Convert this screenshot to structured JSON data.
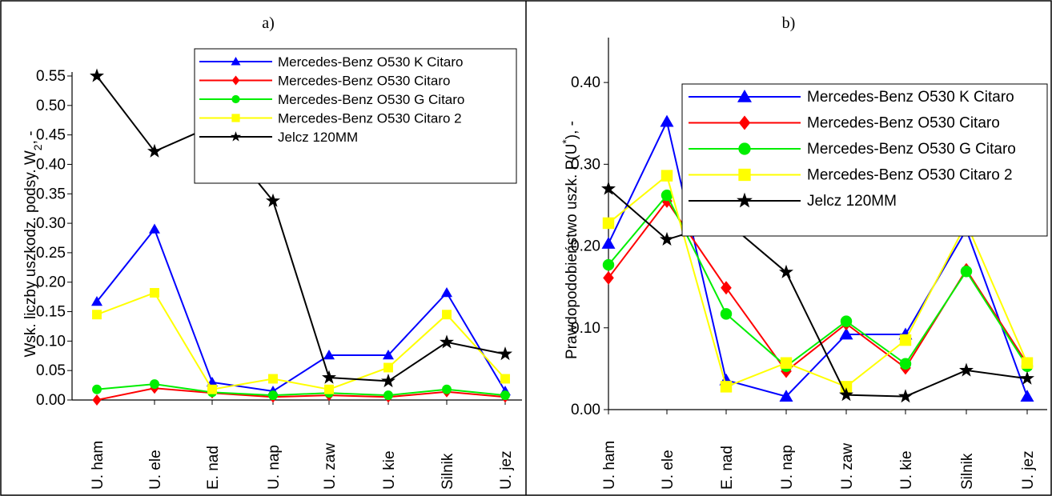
{
  "panels": [
    {
      "label": "a)",
      "chart_data": {
        "type": "line",
        "categories": [
          "U. ham",
          "U. ele",
          "E. nad",
          "U. nap",
          "U. zaw",
          "U. kie",
          "Silnik",
          "U. jez"
        ],
        "ylabel_main": "Wsk. liczby uszkodz. podsy. W",
        "ylabel_sub": "2",
        "ylabel_tail": ", -",
        "ylim": [
          0,
          0.55
        ],
        "yticks": [
          "0.00",
          "0.05",
          "0.10",
          "0.15",
          "0.20",
          "0.25",
          "0.30",
          "0.35",
          "0.40",
          "0.45",
          "0.50",
          "0.55"
        ],
        "grid": false,
        "legend_position": "top-right",
        "series": [
          {
            "name": "Mercedes-Benz O530 K Citaro",
            "color": "#0000ff",
            "marker": "triangle",
            "values": [
              0.167,
              0.29,
              0.03,
              0.015,
              0.076,
              0.076,
              0.182,
              0.015
            ]
          },
          {
            "name": "Mercedes-Benz O530 Citaro",
            "color": "#ff0000",
            "marker": "diamond",
            "values": [
              0.0,
              0.02,
              0.012,
              0.005,
              0.008,
              0.005,
              0.014,
              0.005
            ]
          },
          {
            "name": "Mercedes-Benz O530 G Citaro",
            "color": "#00ee00",
            "marker": "circle",
            "values": [
              0.018,
              0.027,
              0.013,
              0.008,
              0.012,
              0.008,
              0.018,
              0.008
            ]
          },
          {
            "name": "Mercedes-Benz O530 Citaro 2",
            "color": "#ffff00",
            "marker": "square",
            "values": [
              0.145,
              0.182,
              0.018,
              0.036,
              0.018,
              0.055,
              0.145,
              0.036
            ]
          },
          {
            "name": "Jelcz 120MM",
            "color": "#000000",
            "marker": "star",
            "values": [
              0.55,
              0.422,
              0.465,
              0.338,
              0.038,
              0.032,
              0.098,
              0.078
            ]
          }
        ]
      }
    },
    {
      "label": "b)",
      "chart_data": {
        "type": "line",
        "categories": [
          "U. ham",
          "U. ele",
          "E. nad",
          "U. nap",
          "U. zaw",
          "U. kie",
          "Silnik",
          "U. jez"
        ],
        "ylabel_main": "Prawdopodobieństwo uszk. P(U",
        "ylabel_sup": "*",
        "ylabel_tail": "), -",
        "ylim": [
          0,
          0.45
        ],
        "yticks": [
          "0.00",
          "0.10",
          "0.20",
          "0.30",
          "0.40"
        ],
        "grid": false,
        "legend_position": "top-right",
        "series": [
          {
            "name": "Mercedes-Benz O530 K Citaro",
            "color": "#0000ff",
            "marker": "triangle",
            "values": [
              0.203,
              0.352,
              0.036,
              0.016,
              0.092,
              0.092,
              0.22,
              0.016
            ]
          },
          {
            "name": "Mercedes-Benz O530 Citaro",
            "color": "#ff0000",
            "marker": "diamond",
            "values": [
              0.161,
              0.255,
              0.149,
              0.047,
              0.105,
              0.051,
              0.171,
              0.056
            ]
          },
          {
            "name": "Mercedes-Benz O530 G Citaro",
            "color": "#00ee00",
            "marker": "circle",
            "values": [
              0.177,
              0.262,
              0.117,
              0.053,
              0.108,
              0.056,
              0.169,
              0.053
            ]
          },
          {
            "name": "Mercedes-Benz O530 Citaro 2",
            "color": "#ffff00",
            "marker": "square",
            "values": [
              0.228,
              0.286,
              0.028,
              0.057,
              0.028,
              0.085,
              0.228,
              0.057
            ]
          },
          {
            "name": "Jelcz 120MM",
            "color": "#000000",
            "marker": "star",
            "values": [
              0.27,
              0.208,
              0.23,
              0.168,
              0.018,
              0.016,
              0.048,
              0.038
            ]
          }
        ]
      }
    }
  ]
}
